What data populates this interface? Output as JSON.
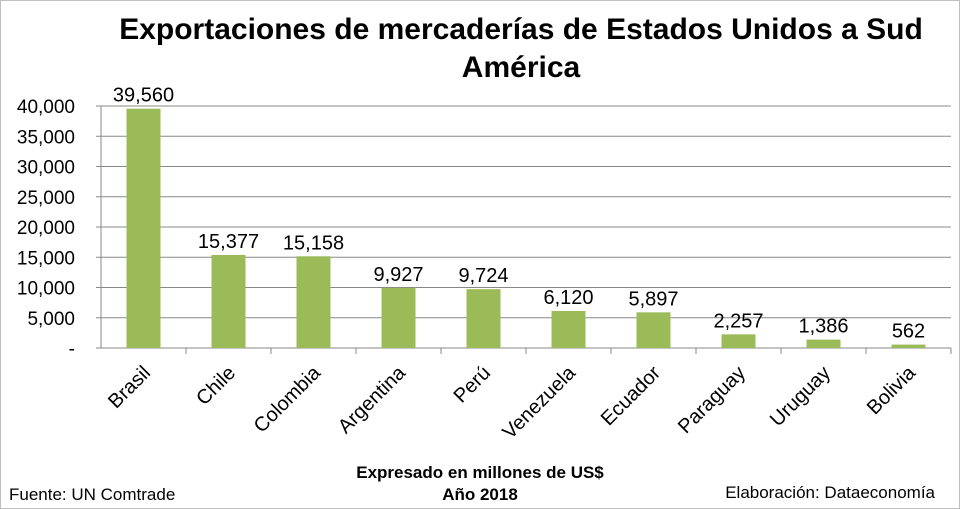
{
  "chart_data": {
    "type": "bar",
    "title": "Exportaciones de mercaderías de Estados Unidos a Sud América",
    "categories": [
      "Brasil",
      "Chile",
      "Colombia",
      "Argentina",
      "Perú",
      "Venezuela",
      "Ecuador",
      "Paraguay",
      "Uruguay",
      "Bolivia"
    ],
    "values": [
      39560,
      15377,
      15158,
      9927,
      9724,
      6120,
      5897,
      2257,
      1386,
      562
    ],
    "value_labels": [
      "39,560",
      "15,377",
      "15,158",
      "9,927",
      "9,724",
      "6,120",
      "5,897",
      "2,257",
      "1,386",
      "562"
    ],
    "yticks": [
      0,
      5000,
      10000,
      15000,
      20000,
      25000,
      30000,
      35000,
      40000
    ],
    "ytick_labels": [
      "-",
      "5,000",
      "10,000",
      "15,000",
      "20,000",
      "25,000",
      "30,000",
      "35,000",
      "40,000"
    ],
    "ylim": [
      0,
      40000
    ],
    "grid": true,
    "legend": "none",
    "bar_color": "#9bbb59",
    "grid_color": "#888888",
    "xlabel": "Expresado en millones de US$",
    "subtitle": "Año 2018"
  },
  "footer": {
    "source": "Fuente:  UN Comtrade",
    "credit": "Elaboración: Dataeconomía"
  }
}
